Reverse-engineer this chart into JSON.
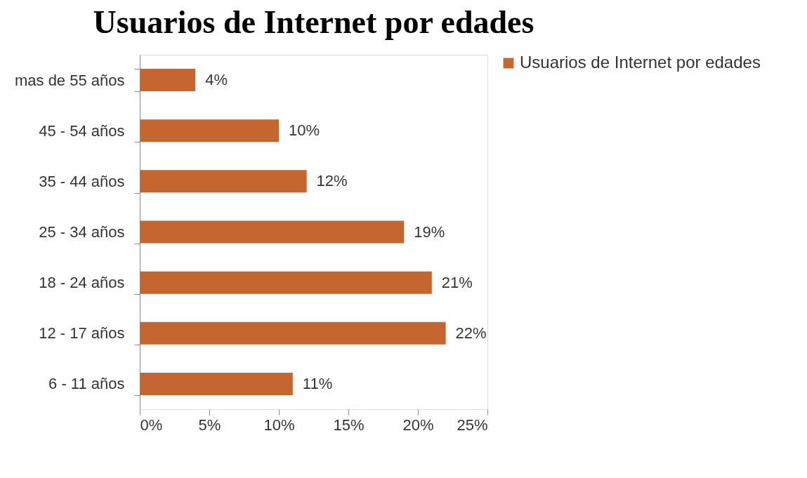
{
  "chart_data": {
    "type": "bar",
    "orientation": "horizontal",
    "title": "Usuarios de Internet por edades",
    "categories": [
      "mas de 55 años",
      "45 - 54 años",
      "35 - 44 años",
      "25 - 34 años",
      "18 - 24 años",
      "12 - 17 años",
      "6 - 11 años"
    ],
    "series": [
      {
        "name": "Usuarios de Internet por edades",
        "color": "#c5652f",
        "values": [
          4,
          10,
          12,
          19,
          21,
          22,
          11
        ],
        "value_labels": [
          "4%",
          "10%",
          "12%",
          "19%",
          "21%",
          "22%",
          "11%"
        ]
      }
    ],
    "xlim": [
      0,
      25
    ],
    "xticks": [
      {
        "value": 0,
        "label": "0%"
      },
      {
        "value": 5,
        "label": "5%"
      },
      {
        "value": 10,
        "label": "10%"
      },
      {
        "value": 15,
        "label": "15%"
      },
      {
        "value": 20,
        "label": "20%"
      },
      {
        "value": 25,
        "label": "25%"
      }
    ],
    "grid": false,
    "legend": "right"
  }
}
